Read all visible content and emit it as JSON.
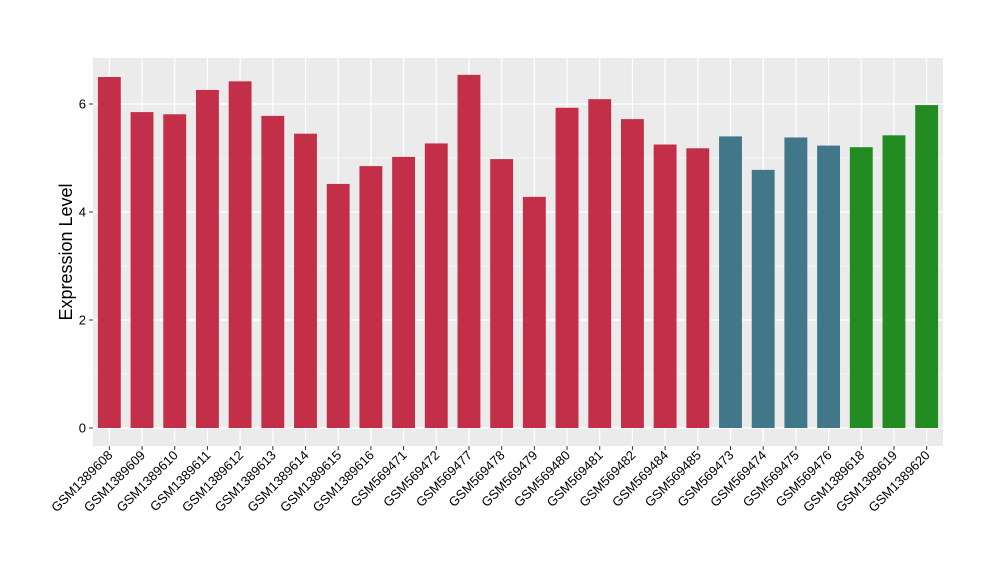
{
  "chart_data": {
    "type": "bar",
    "title": "",
    "xlabel": "",
    "ylabel": "Expression Level",
    "ylim": [
      0,
      6.8
    ],
    "yticks": [
      0,
      2,
      4,
      6
    ],
    "grid": true,
    "legend": "none",
    "colors": {
      "panel_background": "#EBEBEB",
      "grid": "#FFFFFF",
      "axis_tick": "#333333"
    },
    "categories": [
      "GSM1389608",
      "GSM1389609",
      "GSM1389610",
      "GSM1389611",
      "GSM1389612",
      "GSM1389613",
      "GSM1389614",
      "GSM1389615",
      "GSM1389616",
      "GSM569471",
      "GSM569472",
      "GSM569477",
      "GSM569478",
      "GSM569479",
      "GSM569480",
      "GSM569481",
      "GSM569482",
      "GSM569484",
      "GSM569485",
      "GSM569473",
      "GSM569474",
      "GSM569475",
      "GSM569476",
      "GSM1389618",
      "GSM1389619",
      "GSM1389620"
    ],
    "values": [
      6.5,
      5.85,
      5.81,
      6.26,
      6.42,
      5.78,
      5.45,
      4.52,
      4.85,
      5.02,
      5.27,
      6.54,
      4.98,
      4.28,
      5.93,
      6.09,
      5.72,
      5.25,
      5.18,
      5.4,
      4.78,
      5.38,
      5.23,
      5.2,
      5.42,
      5.98
    ],
    "bar_colors": [
      "#C32F49",
      "#C32F49",
      "#C32F49",
      "#C32F49",
      "#C32F49",
      "#C32F49",
      "#C32F49",
      "#C32F49",
      "#C32F49",
      "#C32F49",
      "#C32F49",
      "#C32F49",
      "#C32F49",
      "#C32F49",
      "#C32F49",
      "#C32F49",
      "#C32F49",
      "#C32F49",
      "#C32F49",
      "#417789",
      "#417789",
      "#417789",
      "#417789",
      "#228B22",
      "#228B22",
      "#228B22"
    ]
  }
}
